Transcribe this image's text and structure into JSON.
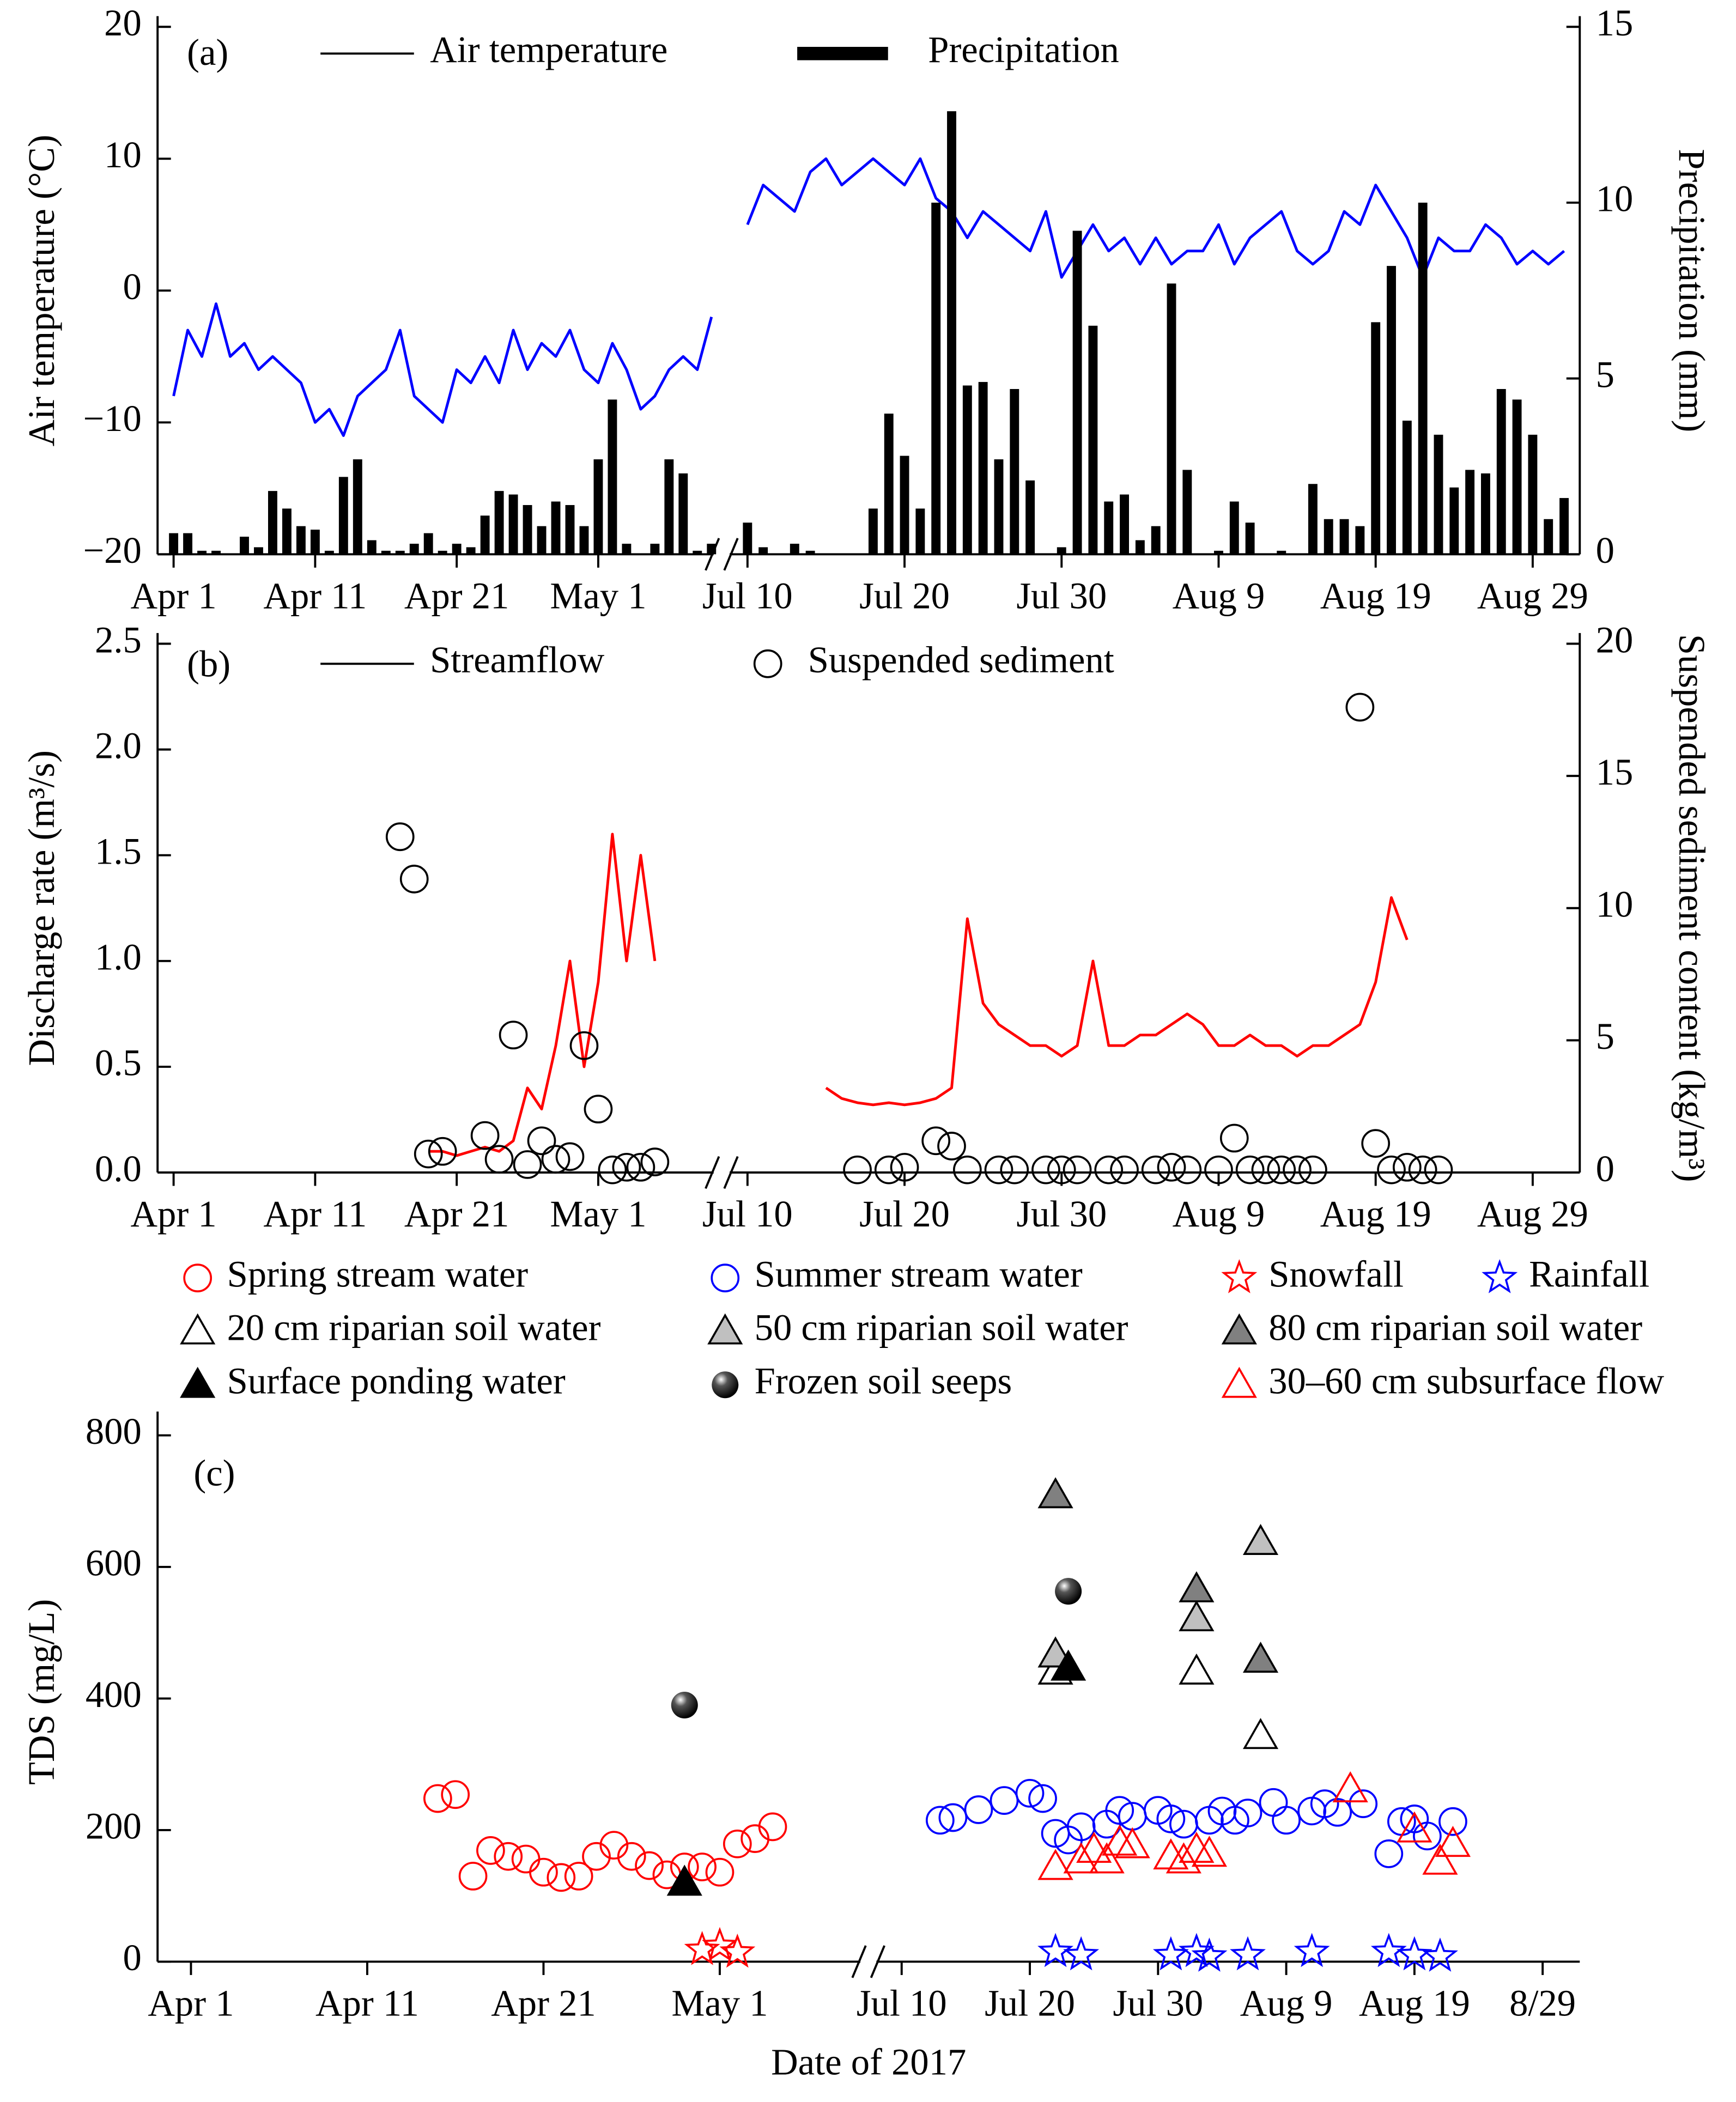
{
  "chart_data": [
    {
      "type": "combo",
      "panel_label": "(a)",
      "ylabel": "Air temperature (°C)",
      "y2label": "Precipitation (mm)",
      "legend": "top-left",
      "xlim": [
        "Apr 1",
        "Sep 1"
      ],
      "x_break": [
        "May 9",
        "Jul 9"
      ],
      "xticks": [
        "Apr 1",
        "Apr 11",
        "Apr 21",
        "May 1",
        "Jul 10",
        "Jul 20",
        "Jul 30",
        "Aug 9",
        "Aug 19",
        "Aug 29"
      ],
      "ylim": [
        -20,
        20
      ],
      "yticks": [
        {
          "value": -20,
          "label": "−20"
        },
        {
          "value": -10,
          "label": "−10"
        },
        0,
        10,
        20
      ],
      "y2lim": [
        0,
        15
      ],
      "y2ticks": [
        0,
        5,
        10,
        15
      ],
      "x": [
        "Apr 1",
        "Apr 2",
        "Apr 3",
        "Apr 4",
        "Apr 5",
        "Apr 6",
        "Apr 7",
        "Apr 8",
        "Apr 9",
        "Apr 10",
        "Apr 11",
        "Apr 12",
        "Apr 13",
        "Apr 14",
        "Apr 15",
        "Apr 16",
        "Apr 17",
        "Apr 18",
        "Apr 19",
        "Apr 20",
        "Apr 21",
        "Apr 22",
        "Apr 23",
        "Apr 24",
        "Apr 25",
        "Apr 26",
        "Apr 27",
        "Apr 28",
        "Apr 29",
        "Apr 30",
        "May 1",
        "May 2",
        "May 3",
        "May 4",
        "May 5",
        "May 6",
        "May 7",
        "May 8",
        "May 9",
        "Jul 9",
        "Jul 10",
        "Jul 11",
        "Jul 12",
        "Jul 13",
        "Jul 14",
        "Jul 15",
        "Jul 16",
        "Jul 17",
        "Jul 18",
        "Jul 19",
        "Jul 20",
        "Jul 21",
        "Jul 22",
        "Jul 23",
        "Jul 24",
        "Jul 25",
        "Jul 26",
        "Jul 27",
        "Jul 28",
        "Jul 29",
        "Jul 30",
        "Jul 31",
        "Aug 1",
        "Aug 2",
        "Aug 3",
        "Aug 4",
        "Aug 5",
        "Aug 6",
        "Aug 7",
        "Aug 8",
        "Aug 9",
        "Aug 10",
        "Aug 11",
        "Aug 12",
        "Aug 13",
        "Aug 14",
        "Aug 15",
        "Aug 16",
        "Aug 17",
        "Aug 18",
        "Aug 19",
        "Aug 20",
        "Aug 21",
        "Aug 22",
        "Aug 23",
        "Aug 24",
        "Aug 25",
        "Aug 26",
        "Aug 27",
        "Aug 28",
        "Aug 29",
        "Aug 30",
        "Aug 31"
      ],
      "series": [
        {
          "name": "Air temperature",
          "type": "line",
          "color": "#0000ff",
          "values": [
            -8,
            -3,
            -5,
            -1,
            -5,
            -4,
            -6,
            -5,
            -6,
            -7,
            -10,
            -9,
            -11,
            -8,
            -7,
            -6,
            -3,
            -8,
            -9,
            -10,
            -6,
            -7,
            -5,
            -7,
            -3,
            -6,
            -4,
            -5,
            -3,
            -6,
            -7,
            -4,
            -6,
            -9,
            -8,
            -6,
            -5,
            -6,
            -2,
            null,
            5,
            8,
            7,
            6,
            9,
            10,
            8,
            9,
            10,
            9,
            8,
            10,
            7,
            6,
            4,
            6,
            5,
            4,
            3,
            6,
            1,
            3,
            5,
            3,
            4,
            2,
            4,
            2,
            3,
            3,
            5,
            2,
            4,
            5,
            6,
            3,
            2,
            3,
            6,
            5,
            8,
            6,
            4,
            1,
            4,
            3,
            3,
            5,
            4,
            2,
            3,
            2,
            3
          ]
        },
        {
          "name": "Precipitation",
          "type": "bar",
          "color": "#000000",
          "axis": "y2",
          "values": [
            0.6,
            0.6,
            0.1,
            0.1,
            0,
            0.5,
            0.2,
            1.8,
            1.3,
            0.8,
            0.7,
            0.1,
            2.2,
            2.7,
            0.4,
            0.1,
            0.1,
            0.3,
            0.6,
            0.1,
            0.3,
            0.2,
            1.1,
            1.8,
            1.7,
            1.4,
            0.8,
            1.5,
            1.4,
            0.8,
            2.7,
            4.4,
            0.3,
            0,
            0.3,
            2.7,
            2.3,
            0.1,
            0.3,
            null,
            0.9,
            0.2,
            0,
            0.3,
            0.1,
            0,
            0,
            0,
            1.3,
            4.0,
            2.8,
            1.3,
            10.0,
            12.6,
            4.8,
            4.9,
            2.7,
            4.7,
            2.1,
            0,
            0.2,
            9.2,
            6.5,
            1.5,
            1.7,
            0.4,
            0.8,
            7.7,
            2.4,
            0,
            0.1,
            1.5,
            0.9,
            0,
            0.1,
            0,
            2.0,
            1.0,
            1.0,
            0.8,
            6.6,
            8.2,
            3.8,
            10.0,
            3.4,
            1.9,
            2.4,
            2.3,
            4.7,
            4.4,
            3.4,
            1.0,
            1.6
          ]
        }
      ]
    },
    {
      "type": "combo",
      "panel_label": "(b)",
      "ylabel": "Discharge rate (m³/s)",
      "y2label": "Suspended sediment content (kg/m³)",
      "legend": "top-left",
      "xlim": [
        "Apr 1",
        "Sep 1"
      ],
      "x_break": [
        "May 9",
        "Jul 9"
      ],
      "xticks": [
        "Apr 1",
        "Apr 11",
        "Apr 21",
        "May 1",
        "Jul 10",
        "Jul 20",
        "Jul 30",
        "Aug 9",
        "Aug 19",
        "Aug 29"
      ],
      "ylim": [
        0,
        2.5
      ],
      "yticks": [
        {
          "value": 0,
          "label": "0.0"
        },
        0.5,
        {
          "value": 1,
          "label": "1.0"
        },
        1.5,
        {
          "value": 2,
          "label": "2.0"
        },
        2.5
      ],
      "y2lim": [
        0,
        20
      ],
      "y2ticks": [
        0,
        5,
        10,
        15,
        20
      ],
      "series": [
        {
          "name": "Streamflow",
          "type": "line",
          "color": "#ff0000",
          "x": [
            "Apr 19",
            "Apr 20",
            "Apr 21",
            "Apr 22",
            "Apr 23",
            "Apr 24",
            "Apr 25",
            "Apr 26",
            "Apr 27",
            "Apr 28",
            "Apr 29",
            "Apr 30",
            "May 1",
            "May 2",
            "May 3",
            "May 4",
            "May 5",
            "Jul 14",
            "Jul 15",
            "Jul 16",
            "Jul 17",
            "Jul 18",
            "Jul 19",
            "Jul 20",
            "Jul 21",
            "Jul 22",
            "Jul 23",
            "Jul 24",
            "Jul 25",
            "Jul 26",
            "Jul 27",
            "Jul 28",
            "Jul 29",
            "Jul 30",
            "Jul 31",
            "Aug 1",
            "Aug 2",
            "Aug 3",
            "Aug 4",
            "Aug 5",
            "Aug 6",
            "Aug 7",
            "Aug 8",
            "Aug 9",
            "Aug 10",
            "Aug 11",
            "Aug 12",
            "Aug 13",
            "Aug 14",
            "Aug 15",
            "Aug 16",
            "Aug 17",
            "Aug 18",
            "Aug 19",
            "Aug 20",
            "Aug 21"
          ],
          "values": [
            0.1,
            0.1,
            0.08,
            0.1,
            0.12,
            0.1,
            0.15,
            0.4,
            0.3,
            0.6,
            1.0,
            0.5,
            0.9,
            1.6,
            1.0,
            1.5,
            1.0,
            null,
            0.4,
            0.35,
            0.33,
            0.32,
            0.33,
            0.32,
            0.33,
            0.35,
            0.4,
            1.2,
            0.8,
            0.7,
            0.65,
            0.6,
            0.6,
            0.55,
            0.6,
            1.0,
            0.6,
            0.6,
            0.65,
            0.65,
            0.7,
            0.75,
            0.7,
            0.6,
            0.6,
            0.65,
            0.6,
            0.6,
            0.55,
            0.6,
            0.6,
            0.65,
            0.7,
            0.9,
            1.3,
            1.1
          ]
        },
        {
          "name": "Suspended sediment",
          "type": "scatter",
          "marker": "circle",
          "color": "#000000",
          "fill": "none",
          "axis": "y2",
          "x": [
            "Apr 17",
            "Apr 18",
            "Apr 19",
            "Apr 20",
            "Apr 23",
            "Apr 24",
            "Apr 25",
            "Apr 26",
            "Apr 27",
            "Apr 28",
            "Apr 29",
            "Apr 30",
            "May 1",
            "May 2",
            "May 3",
            "May 4",
            "May 5",
            "Jul 17",
            "Jul 19",
            "Jul 20",
            "Jul 22",
            "Jul 23",
            "Jul 24",
            "Jul 26",
            "Jul 27",
            "Jul 29",
            "Jul 30",
            "Jul 31",
            "Aug 2",
            "Aug 3",
            "Aug 5",
            "Aug 6",
            "Aug 7",
            "Aug 9",
            "Aug 10",
            "Aug 11",
            "Aug 12",
            "Aug 13",
            "Aug 14",
            "Aug 15",
            "Aug 18",
            "Aug 19",
            "Aug 20",
            "Aug 21",
            "Aug 22",
            "Aug 23"
          ],
          "values": [
            12.7,
            11.1,
            0.7,
            0.8,
            1.4,
            0.5,
            5.2,
            0.3,
            1.2,
            0.5,
            0.6,
            4.8,
            2.4,
            0.1,
            0.2,
            0.2,
            0.4,
            0.1,
            0.1,
            0.2,
            1.2,
            1.0,
            0.1,
            0.1,
            0.1,
            0.1,
            0.1,
            0.1,
            0.1,
            0.1,
            0.1,
            0.2,
            0.1,
            0.1,
            1.3,
            0.1,
            0.1,
            0.1,
            0.1,
            0.1,
            17.6,
            1.1,
            0.1,
            0.2,
            0.1,
            0.1
          ]
        }
      ]
    },
    {
      "type": "scatter",
      "panel_label": "(c)",
      "ylabel": "TDS (mg/L)",
      "xlabel": "Date of 2017",
      "legend": "above",
      "xlim": [
        "Apr 1",
        "Sep 1"
      ],
      "x_break": [
        "May 9",
        "Jul 8"
      ],
      "xticks": [
        "Apr 1",
        "Apr 11",
        "Apr 21",
        "May 1",
        "Jul 10",
        "Jul 20",
        "Jul 30",
        "Aug 9",
        "Aug 19",
        {
          "value": "Aug 29",
          "label": "8/29"
        }
      ],
      "ylim": [
        0,
        820
      ],
      "yticks": [
        0,
        200,
        400,
        600,
        800
      ],
      "series": [
        {
          "name": "Spring stream water",
          "marker": "circle",
          "color": "#ff0000",
          "fill": "none",
          "x": [
            "Apr 15",
            "Apr 16",
            "Apr 17",
            "Apr 18",
            "Apr 19",
            "Apr 20",
            "Apr 21",
            "Apr 22",
            "Apr 23",
            "Apr 24",
            "Apr 25",
            "Apr 26",
            "Apr 27",
            "Apr 28",
            "Apr 29",
            "Apr 30",
            "May 1",
            "May 2",
            "May 3",
            "May 4"
          ],
          "values": [
            248,
            254,
            130,
            169,
            160,
            156,
            136,
            128,
            130,
            160,
            177,
            160,
            146,
            132,
            144,
            144,
            136,
            179,
            187,
            205
          ]
        },
        {
          "name": "Summer stream water",
          "marker": "circle",
          "color": "#0000ff",
          "fill": "none",
          "x": [
            "Jul 13",
            "Jul 14",
            "Jul 16",
            "Jul 18",
            "Jul 20",
            "Jul 21",
            "Jul 22",
            "Jul 23",
            "Jul 24",
            "Jul 26",
            "Jul 27",
            "Jul 28",
            "Jul 30",
            "Jul 31",
            "Aug 1",
            "Aug 3",
            "Aug 4",
            "Aug 5",
            "Aug 6",
            "Aug 8",
            "Aug 9",
            "Aug 11",
            "Aug 12",
            "Aug 13",
            "Aug 15",
            "Aug 17",
            "Aug 18",
            "Aug 19",
            "Aug 20",
            "Aug 22"
          ],
          "values": [
            215,
            219,
            231,
            245,
            256,
            248,
            195,
            185,
            205,
            209,
            230,
            221,
            230,
            217,
            209,
            215,
            229,
            215,
            226,
            242,
            215,
            229,
            240,
            227,
            240,
            164,
            213,
            217,
            191,
            213
          ]
        },
        {
          "name": "Snowfall",
          "marker": "star",
          "color": "#ff0000",
          "fill": "none",
          "x": [
            "Apr 30",
            "May 1",
            "May 2"
          ],
          "values": [
            18,
            24,
            14
          ]
        },
        {
          "name": "Rainfall",
          "marker": "star",
          "color": "#0000ff",
          "fill": "none",
          "x": [
            "Jul 22",
            "Jul 24",
            "Jul 31",
            "Aug 2",
            "Aug 3",
            "Aug 6",
            "Aug 11",
            "Aug 17",
            "Aug 19",
            "Aug 21"
          ],
          "values": [
            15,
            10,
            10,
            15,
            8,
            10,
            15,
            15,
            10,
            8
          ]
        },
        {
          "name": "20 cm riparian soil water",
          "marker": "triangle",
          "color": "#000000",
          "fill": "none",
          "x": [
            "Jul 22",
            "Aug 2",
            "Aug 7"
          ],
          "values": [
            441,
            441,
            343
          ]
        },
        {
          "name": "50 cm riparian soil water",
          "marker": "triangle",
          "color": "#000000",
          "fill": "#c0c0c0",
          "x": [
            "Jul 22",
            "Aug 2",
            "Aug 7"
          ],
          "values": [
            467,
            522,
            638
          ]
        },
        {
          "name": "80 cm riparian soil water",
          "marker": "triangle",
          "color": "#000000",
          "fill": "#808080",
          "x": [
            "Jul 22",
            "Aug 2",
            "Aug 7"
          ],
          "values": [
            709,
            566,
            459
          ]
        },
        {
          "name": "Surface ponding water",
          "marker": "triangle",
          "color": "#000000",
          "fill": "#000000",
          "x": [
            "Apr 29",
            "Jul 23"
          ],
          "values": [
            120,
            447
          ]
        },
        {
          "name": "Frozen soil seeps",
          "marker": "sphere",
          "color": "#000000",
          "fill": "#000000",
          "x": [
            "Apr 29",
            "Jul 23"
          ],
          "values": [
            390,
            563
          ]
        },
        {
          "name": "30–60 cm subsurface flow",
          "marker": "triangle",
          "color": "#ff0000",
          "fill": "none",
          "x": [
            "Jul 22",
            "Jul 24",
            "Jul 25",
            "Jul 26",
            "Jul 27",
            "Jul 28",
            "Jul 31",
            "Aug 1",
            "Aug 2",
            "Aug 3",
            "Aug 14",
            "Aug 19",
            "Aug 21",
            "Aug 22"
          ],
          "values": [
            144,
            154,
            170,
            154,
            181,
            177,
            160,
            154,
            170,
            164,
            262,
            201,
            152,
            179
          ]
        }
      ]
    }
  ]
}
